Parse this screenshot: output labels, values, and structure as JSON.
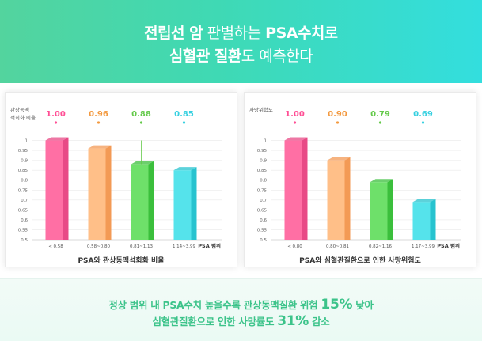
{
  "header": {
    "line1": [
      {
        "text": "전립선 암",
        "bold": true
      },
      {
        "text": " 판별하는 ",
        "bold": false
      },
      {
        "text": "PSA수치",
        "bold": true
      },
      {
        "text": "로",
        "bold": false
      }
    ],
    "line2": [
      {
        "text": "심혈관 질환",
        "bold": true
      },
      {
        "text": "도 예측한다",
        "bold": false
      }
    ]
  },
  "chart_data": [
    {
      "type": "bar",
      "title": "PSA와 관상동맥석회화 비율",
      "ylabel": "관상동맥\n석회화 비율",
      "xlabel": "PSA 범위",
      "categories": [
        "< 0.58",
        "0.58~0.80",
        "0.81~1.13",
        "1.14~3.99"
      ],
      "values": [
        1.0,
        0.96,
        0.88,
        0.85
      ],
      "value_labels": [
        "1.00",
        "0.96",
        "0.88",
        "0.85"
      ],
      "ylim": [
        0.5,
        1.05
      ],
      "yticks": [
        "0.5",
        "0.55",
        "0.6",
        "0.65",
        "0.7",
        "0.75",
        "0.8",
        "0.85",
        "0.9",
        "0.95",
        "1"
      ],
      "colors": [
        "#ff6fa4",
        "#ffbf88",
        "#6ee06a",
        "#55e3eb"
      ],
      "side_colors": [
        "#e84a86",
        "#f39a55",
        "#3bbf3c",
        "#27c3cf"
      ],
      "label_colors": [
        "#ff4f95",
        "#f3993f",
        "#64c94a",
        "#36d0e0"
      ],
      "grid": true,
      "error_bar": {
        "index": 2,
        "value_high": 1.0
      }
    },
    {
      "type": "bar",
      "title": "PSA와 심혈관질환으로 인한 사망위험도",
      "ylabel": "사망위험도",
      "xlabel": "PSA 범위",
      "categories": [
        "< 0.80",
        "0.80~0.81",
        "0.82~1.16",
        "1.17~3.99"
      ],
      "values": [
        1.0,
        0.9,
        0.79,
        0.69
      ],
      "value_labels": [
        "1.00",
        "0.90",
        "0.79",
        "0.69"
      ],
      "ylim": [
        0.5,
        1.05
      ],
      "yticks": [
        "0.5",
        "0.55",
        "0.6",
        "0.65",
        "0.7",
        "0.75",
        "0.8",
        "0.85",
        "0.9",
        "0.95",
        "1"
      ],
      "colors": [
        "#ff6fa4",
        "#ffbf88",
        "#6ee06a",
        "#55e3eb"
      ],
      "side_colors": [
        "#e84a86",
        "#f39a55",
        "#3bbf3c",
        "#27c3cf"
      ],
      "label_colors": [
        "#ff4f95",
        "#f3993f",
        "#64c94a",
        "#36d0e0"
      ],
      "grid": true
    }
  ],
  "footer": {
    "line1": [
      {
        "text": "정상 범위 내 PSA수치 높을수록 관상동맥질환 위험 ",
        "big": false
      },
      {
        "text": "15%",
        "big": true
      },
      {
        "text": " 낮아",
        "big": false
      }
    ],
    "line2": [
      {
        "text": "심혈관질환으로 인한 사망률도 ",
        "big": false
      },
      {
        "text": "31%",
        "big": true
      },
      {
        "text": " 감소",
        "big": false
      }
    ]
  }
}
